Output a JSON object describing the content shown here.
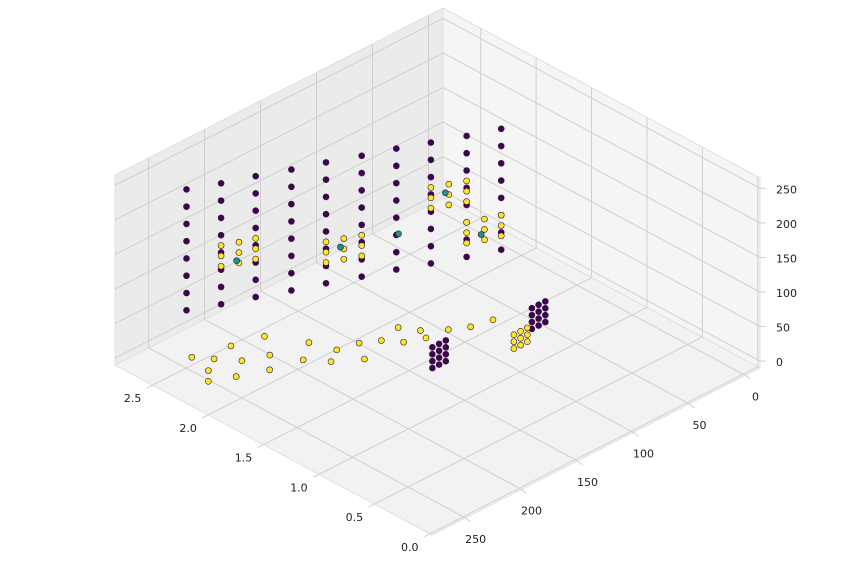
{
  "chart_data": {
    "type": "scatter3d",
    "xlim": [
      -0.02,
      2.84
    ],
    "ylim": [
      -13,
      280
    ],
    "zlim": [
      -10,
      265
    ],
    "xticks": [
      {
        "value": 0,
        "label": "0.0"
      },
      {
        "value": 0.5,
        "label": "0.5"
      },
      {
        "value": 1,
        "label": "1.0"
      },
      {
        "value": 1.5,
        "label": "1.5"
      },
      {
        "value": 2,
        "label": "2.0"
      },
      {
        "value": 2.5,
        "label": "2.5"
      }
    ],
    "yticks": [
      0,
      50,
      100,
      150,
      200,
      250
    ],
    "zticks": [
      0,
      50,
      100,
      150,
      200,
      250
    ],
    "grid": true,
    "series": [
      {
        "color": "#440154",
        "x": [
          2.7,
          2.6,
          2.51,
          2.41,
          2.32,
          2.22,
          2.13,
          2.03,
          1.93,
          1.84,
          2.7,
          2.6,
          2.51,
          2.41,
          2.32,
          2.22,
          2.13,
          2.03,
          1.93,
          1.84,
          2.7,
          2.6,
          2.51,
          2.41,
          2.32,
          2.22,
          2.13,
          2.03,
          1.93,
          1.84,
          2.7,
          2.6,
          2.51,
          2.41,
          2.32,
          2.22,
          2.13,
          2.03,
          1.93,
          1.84,
          2.7,
          2.6,
          2.51,
          2.41,
          2.32,
          2.22,
          2.13,
          2.03,
          1.93,
          1.84,
          2.7,
          2.6,
          2.51,
          2.41,
          2.32,
          2.22,
          2.13,
          2.03,
          1.93,
          1.84,
          2.7,
          2.6,
          2.51,
          2.41,
          2.32,
          2.22,
          2.13,
          2.03,
          1.93,
          1.84,
          2.7,
          2.6,
          2.51,
          2.41,
          2.32,
          2.22,
          2.13,
          2.03,
          1.93,
          1.84,
          1.33,
          1.33,
          1.33,
          1.33,
          1.33,
          1.33,
          1.33,
          1.33,
          1.33,
          1.33,
          1.33,
          1.33,
          1.23,
          1.23,
          1.23,
          1.23,
          1.23,
          1.23,
          1.23,
          1.23,
          1.23,
          1.23,
          1.23,
          1.23
        ],
        "y": [
          230,
          209,
          187,
          165,
          143,
          121,
          99,
          78,
          56,
          34,
          230,
          209,
          187,
          165,
          143,
          121,
          99,
          78,
          56,
          34,
          230,
          209,
          187,
          165,
          143,
          121,
          99,
          78,
          56,
          34,
          230,
          209,
          187,
          165,
          143,
          121,
          99,
          78,
          56,
          34,
          230,
          209,
          187,
          165,
          143,
          121,
          99,
          78,
          56,
          34,
          230,
          209,
          187,
          165,
          143,
          121,
          99,
          78,
          56,
          34,
          230,
          209,
          187,
          165,
          143,
          121,
          99,
          78,
          56,
          34,
          230,
          209,
          187,
          165,
          143,
          121,
          99,
          78,
          56,
          34,
          134,
          140,
          146,
          134,
          140,
          146,
          134,
          140,
          146,
          134,
          140,
          146,
          55,
          61,
          67,
          55,
          61,
          67,
          55,
          61,
          67,
          55,
          61,
          67
        ],
        "z": [
          40,
          40,
          40,
          40,
          40,
          40,
          40,
          40,
          40,
          40,
          65,
          65,
          65,
          65,
          65,
          65,
          65,
          65,
          65,
          65,
          90,
          90,
          90,
          90,
          90,
          90,
          90,
          90,
          90,
          90,
          115,
          115,
          115,
          115,
          115,
          115,
          115,
          115,
          115,
          115,
          140,
          140,
          140,
          140,
          140,
          140,
          140,
          140,
          140,
          140,
          165,
          165,
          165,
          165,
          165,
          165,
          165,
          165,
          165,
          165,
          190,
          190,
          190,
          190,
          190,
          190,
          190,
          190,
          190,
          190,
          215,
          215,
          215,
          215,
          215,
          215,
          215,
          215,
          215,
          215,
          5,
          5,
          5,
          15,
          15,
          15,
          25,
          25,
          25,
          35,
          35,
          35,
          5,
          5,
          5,
          15,
          15,
          15,
          25,
          25,
          25,
          35,
          35,
          35
        ]
      },
      {
        "color": "#fde725",
        "x": [
          2.6,
          2.55,
          2.51,
          2.6,
          2.55,
          2.51,
          2.6,
          2.55,
          2.51,
          2.32,
          2.27,
          2.22,
          2.32,
          2.27,
          2.22,
          2.32,
          2.27,
          2.22,
          2.03,
          1.98,
          1.93,
          2.03,
          1.98,
          1.93,
          2.03,
          1.98,
          1.93,
          1.93,
          1.88,
          1.84,
          1.93,
          1.88,
          1.84,
          1.93,
          1.88,
          1.84,
          2.45,
          2.35,
          2.25,
          2.4,
          2.2,
          2.1,
          2.3,
          2.15,
          2.0,
          1.95,
          2.05,
          1.9,
          1.8,
          1.85,
          1.75,
          1.7,
          1.65,
          1.6,
          1.55,
          1.7,
          1.8,
          2.2,
          1.5,
          1.45,
          1.14,
          1.14,
          1.14,
          1.14,
          1.14,
          1.14,
          1.14,
          1.14,
          1.14
        ],
        "y": [
          209,
          198,
          187,
          209,
          198,
          187,
          209,
          198,
          187,
          143,
          132,
          121,
          143,
          132,
          121,
          143,
          132,
          121,
          78,
          67,
          56,
          78,
          67,
          56,
          78,
          67,
          56,
          56,
          45,
          34,
          56,
          45,
          34,
          56,
          45,
          34,
          250,
          240,
          255,
          220,
          230,
          245,
          200,
          210,
          225,
          200,
          185,
          175,
          190,
          160,
          150,
          170,
          140,
          125,
          110,
          120,
          130,
          260,
          95,
          80,
          80,
          86,
          92,
          80,
          86,
          92,
          80,
          86,
          92
        ],
        "z": [
          95,
          95,
          95,
          110,
          110,
          110,
          125,
          125,
          125,
          70,
          70,
          70,
          85,
          85,
          85,
          100,
          100,
          100,
          120,
          120,
          120,
          135,
          135,
          135,
          150,
          150,
          150,
          60,
          60,
          60,
          75,
          75,
          75,
          90,
          90,
          90,
          10,
          8,
          12,
          6,
          10,
          8,
          12,
          6,
          10,
          8,
          12,
          6,
          10,
          8,
          12,
          6,
          10,
          8,
          12,
          6,
          10,
          5,
          8,
          10,
          5,
          5,
          5,
          15,
          15,
          15,
          25,
          25,
          25
        ]
      },
      {
        "color": "#21918c",
        "x": [
          2.55,
          2.27,
          1.98,
          2.1,
          1.88
        ],
        "y": [
          200,
          135,
          70,
          100,
          48
        ],
        "z": [
          100,
          90,
          140,
          95,
          70
        ]
      }
    ]
  }
}
